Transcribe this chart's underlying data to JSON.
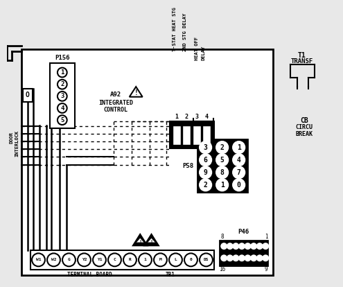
{
  "bg_color": "#e8e8e8",
  "fg_color": "#000000",
  "white": "#ffffff",
  "black": "#000000",
  "p156_label": "P156",
  "p156_pins": [
    "5",
    "4",
    "3",
    "2",
    "1"
  ],
  "a92_lines": [
    "A92",
    "INTEGRATED",
    "CONTROL"
  ],
  "p58_label": "P58",
  "p58_pins": [
    [
      "3",
      "2",
      "1"
    ],
    [
      "6",
      "5",
      "4"
    ],
    [
      "9",
      "8",
      "7"
    ],
    [
      "2",
      "1",
      "0"
    ]
  ],
  "p46_label": "P46",
  "p46_nums": [
    "8",
    "1",
    "16",
    "9"
  ],
  "tb1_pins": [
    "W1",
    "W2",
    "G",
    "Y2",
    "Y1",
    "C",
    "R",
    "1",
    "M",
    "L",
    "0",
    "DS"
  ],
  "tb1_label": "TERMINAL BOARD",
  "tb1_label2": "TB1",
  "relay_nums": [
    "1",
    "2",
    "3",
    "4"
  ],
  "relay_label1": "T-STAT HEAT STG",
  "relay_label2": "2ND STG DELAY",
  "relay_label3": "HEAT OFF",
  "relay_label4": "DELAY",
  "t1_line1": "T1",
  "t1_line2": "TRANSF",
  "cb_line1": "CB",
  "cb_line2": "CIRCU",
  "cb_line3": "BREAK",
  "interlock_line1": "DOOR",
  "interlock_line2": "INTERLOCK",
  "door_o": "O"
}
